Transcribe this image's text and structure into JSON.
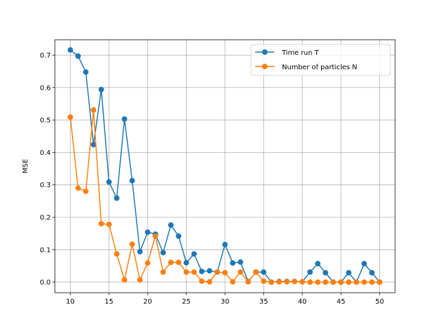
{
  "chart_data": {
    "type": "line",
    "title": "",
    "xlabel": "",
    "ylabel": "MSE",
    "xlim": [
      8.0,
      52.0
    ],
    "ylim": [
      -0.0325,
      0.7475
    ],
    "xticks": [
      10,
      15,
      20,
      25,
      30,
      35,
      40,
      45,
      50
    ],
    "yticks": [
      0.0,
      0.1,
      0.2,
      0.3,
      0.4,
      0.5,
      0.6,
      0.7
    ],
    "ytick_labels": [
      "0.0",
      "0.1",
      "0.2",
      "0.3",
      "0.4",
      "0.5",
      "0.6",
      "0.7"
    ],
    "grid": true,
    "legend_position": "upper right",
    "x": [
      10,
      11,
      12,
      13,
      14,
      15,
      16,
      17,
      18,
      19,
      20,
      21,
      22,
      23,
      24,
      25,
      26,
      27,
      28,
      29,
      30,
      31,
      32,
      33,
      34,
      35,
      36,
      37,
      38,
      39,
      40,
      41,
      42,
      43,
      44,
      45,
      46,
      47,
      48,
      49,
      50
    ],
    "series": [
      {
        "name": "Time run T",
        "color": "#1f77b4",
        "values": [
          0.716,
          0.697,
          0.648,
          0.424,
          0.594,
          0.309,
          0.259,
          0.503,
          0.313,
          0.094,
          0.154,
          0.148,
          0.091,
          0.176,
          0.142,
          0.06,
          0.087,
          0.033,
          0.035,
          0.031,
          0.116,
          0.059,
          0.062,
          0.002,
          0.031,
          0.031,
          0.0,
          0.002,
          0.002,
          0.002,
          0.001,
          0.031,
          0.057,
          0.029,
          0.0,
          0.0,
          0.029,
          0.0,
          0.057,
          0.029,
          0.0
        ]
      },
      {
        "name": "Number of particles N",
        "color": "#ff7f0e",
        "values": [
          0.509,
          0.29,
          0.28,
          0.531,
          0.18,
          0.178,
          0.087,
          0.007,
          0.117,
          0.007,
          0.059,
          0.142,
          0.031,
          0.061,
          0.061,
          0.031,
          0.031,
          0.003,
          0.001,
          0.031,
          0.029,
          0.001,
          0.031,
          0.001,
          0.031,
          0.003,
          0.0,
          0.001,
          0.001,
          0.002,
          0.001,
          0.0,
          0.0,
          0.0,
          0.0,
          0.0,
          0.0,
          0.0,
          0.0,
          0.0,
          0.0
        ]
      }
    ]
  }
}
